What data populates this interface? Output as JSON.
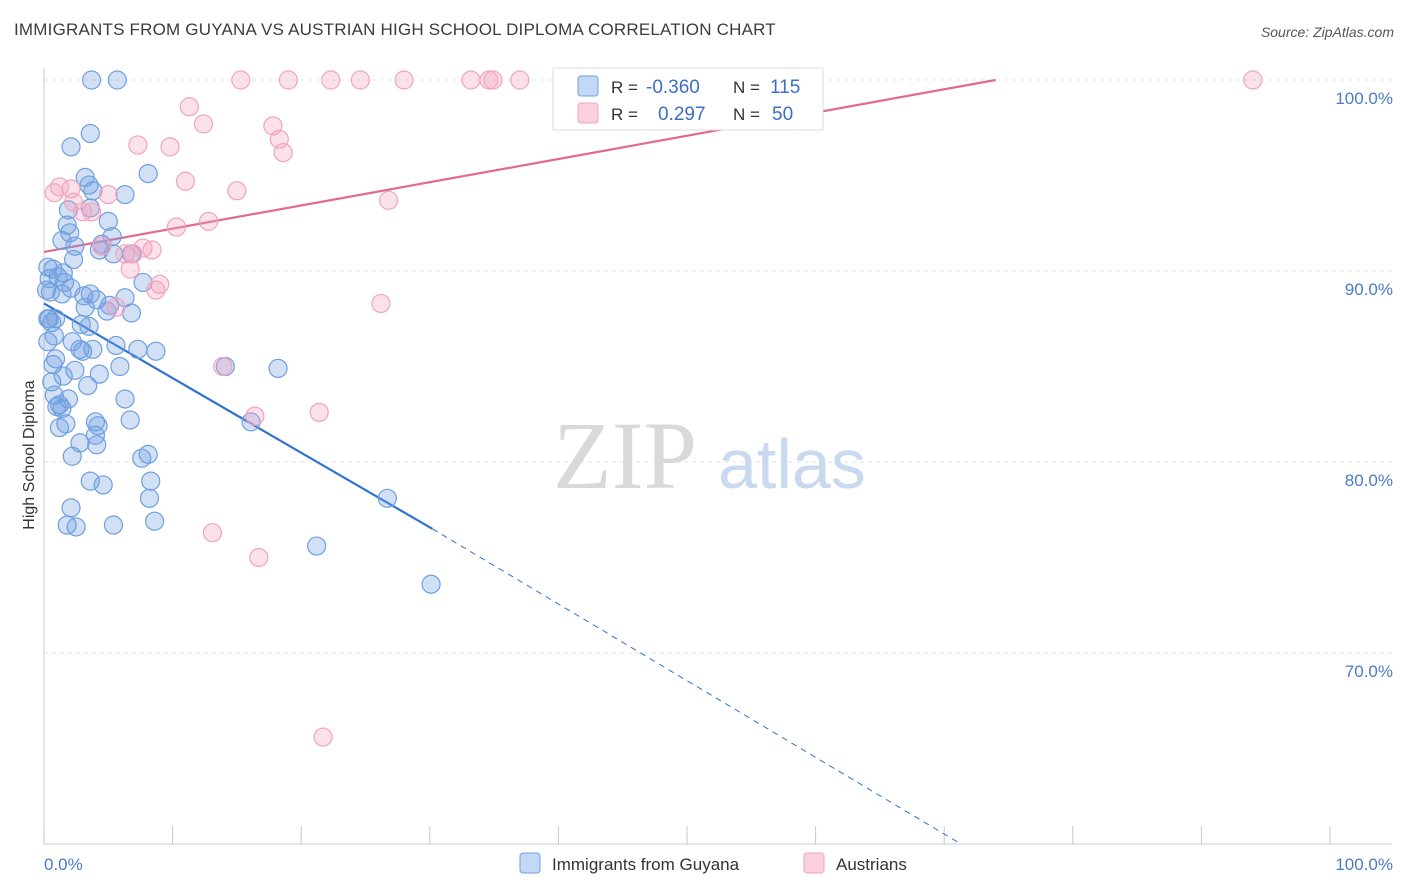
{
  "header": {
    "title": "IMMIGRANTS FROM GUYANA VS AUSTRIAN HIGH SCHOOL DIPLOMA CORRELATION CHART",
    "source": "Source: ZipAtlas.com"
  },
  "watermark": {
    "zip": "ZIP",
    "atlas": "atlas"
  },
  "legend_box": {
    "rows": [
      {
        "r_label": "R =",
        "r_value": "-0.360",
        "n_label": "N =",
        "n_value": "115"
      },
      {
        "r_label": "R =",
        "r_value": "0.297",
        "n_label": "N =",
        "n_value": "50"
      }
    ]
  },
  "colors": {
    "guyana": "#6f9fe0",
    "guyana_line": "#2f72d1",
    "austrians": "#f2a3bd",
    "austrians_line": "#e26a92",
    "axis_label": "#4a7cc7",
    "grid": "#e3e3e3"
  },
  "chart_data": {
    "type": "scatter",
    "title": "IMMIGRANTS FROM GUYANA VS AUSTRIAN HIGH SCHOOL DIPLOMA CORRELATION CHART",
    "xlabel": "",
    "ylabel": "High School Diploma",
    "xlim": [
      0,
      100
    ],
    "ylim": [
      60,
      100
    ],
    "x_tick_labels": [
      "0.0%",
      "100.0%"
    ],
    "y_ticks": [
      70,
      80,
      90,
      100
    ],
    "y_tick_labels": [
      "70.0%",
      "80.0%",
      "90.0%",
      "100.0%"
    ],
    "grid": true,
    "legend_position": "bottom-center",
    "series": [
      {
        "name": "Immigrants from Guyana",
        "color": "#6f9fe0",
        "trend": {
          "x": [
            0,
            30.2
          ],
          "y": [
            88.3,
            76.5
          ],
          "dashed_to": [
            71.3,
            60.0
          ]
        },
        "points": [
          [
            3.7,
            100
          ],
          [
            5.7,
            100
          ],
          [
            3.6,
            97.2
          ],
          [
            2.1,
            96.5
          ],
          [
            8.1,
            95.1
          ],
          [
            3.2,
            94.9
          ],
          [
            3.5,
            94.5
          ],
          [
            3.8,
            94.2
          ],
          [
            6.3,
            94.0
          ],
          [
            1.9,
            93.2
          ],
          [
            3.6,
            93.3
          ],
          [
            5.0,
            92.6
          ],
          [
            1.8,
            92.4
          ],
          [
            2.0,
            92.0
          ],
          [
            1.4,
            91.6
          ],
          [
            5.3,
            91.8
          ],
          [
            2.4,
            91.3
          ],
          [
            4.5,
            91.4
          ],
          [
            4.3,
            91.1
          ],
          [
            6.8,
            90.9
          ],
          [
            5.4,
            90.9
          ],
          [
            0.3,
            90.2
          ],
          [
            1.5,
            89.9
          ],
          [
            2.3,
            90.6
          ],
          [
            0.7,
            90.1
          ],
          [
            1.1,
            89.7
          ],
          [
            0.4,
            89.6
          ],
          [
            1.6,
            89.4
          ],
          [
            0.2,
            89.0
          ],
          [
            0.5,
            88.9
          ],
          [
            2.1,
            89.1
          ],
          [
            1.4,
            88.8
          ],
          [
            7.7,
            89.4
          ],
          [
            3.6,
            88.8
          ],
          [
            3.1,
            88.7
          ],
          [
            6.3,
            88.6
          ],
          [
            4.1,
            88.5
          ],
          [
            5.1,
            88.2
          ],
          [
            3.2,
            88.1
          ],
          [
            0.3,
            87.5
          ],
          [
            0.9,
            87.5
          ],
          [
            6.8,
            87.8
          ],
          [
            0.6,
            87.3
          ],
          [
            0.4,
            87.5
          ],
          [
            2.9,
            87.2
          ],
          [
            4.9,
            87.9
          ],
          [
            0.8,
            86.6
          ],
          [
            3.5,
            87.1
          ],
          [
            0.3,
            86.3
          ],
          [
            2.2,
            86.3
          ],
          [
            5.6,
            86.1
          ],
          [
            2.8,
            85.9
          ],
          [
            3.8,
            85.9
          ],
          [
            3.0,
            85.8
          ],
          [
            7.3,
            85.9
          ],
          [
            8.7,
            85.8
          ],
          [
            0.9,
            85.4
          ],
          [
            0.7,
            85.1
          ],
          [
            5.9,
            85.0
          ],
          [
            2.4,
            84.8
          ],
          [
            1.5,
            84.5
          ],
          [
            4.3,
            84.6
          ],
          [
            0.6,
            84.2
          ],
          [
            3.4,
            84.0
          ],
          [
            14.1,
            85.0
          ],
          [
            18.2,
            84.9
          ],
          [
            0.8,
            83.5
          ],
          [
            6.3,
            83.3
          ],
          [
            1.9,
            83.3
          ],
          [
            1.2,
            83.0
          ],
          [
            1.4,
            82.8
          ],
          [
            1.0,
            82.9
          ],
          [
            4.0,
            82.1
          ],
          [
            1.7,
            82.0
          ],
          [
            6.7,
            82.2
          ],
          [
            16.1,
            82.1
          ],
          [
            4.2,
            81.9
          ],
          [
            1.2,
            81.8
          ],
          [
            4.0,
            81.4
          ],
          [
            2.8,
            81.0
          ],
          [
            4.1,
            80.9
          ],
          [
            8.1,
            80.4
          ],
          [
            2.2,
            80.3
          ],
          [
            7.6,
            80.2
          ],
          [
            3.6,
            79.0
          ],
          [
            4.6,
            78.8
          ],
          [
            8.3,
            79.0
          ],
          [
            8.2,
            78.1
          ],
          [
            26.7,
            78.1
          ],
          [
            2.1,
            77.6
          ],
          [
            8.6,
            76.9
          ],
          [
            1.8,
            76.7
          ],
          [
            2.5,
            76.6
          ],
          [
            5.4,
            76.7
          ],
          [
            21.2,
            75.6
          ],
          [
            30.1,
            73.6
          ]
        ]
      },
      {
        "name": "Austrians",
        "color": "#f2a3bd",
        "trend": {
          "x": [
            0,
            74.0
          ],
          "y": [
            91.0,
            100.0
          ]
        },
        "points": [
          [
            15.3,
            100
          ],
          [
            19.0,
            100
          ],
          [
            22.3,
            100
          ],
          [
            24.6,
            100
          ],
          [
            28.0,
            100
          ],
          [
            33.2,
            100
          ],
          [
            34.6,
            100
          ],
          [
            34.9,
            100
          ],
          [
            37.0,
            100
          ],
          [
            44.7,
            100
          ],
          [
            94.0,
            100
          ],
          [
            53.6,
            99.9
          ],
          [
            11.3,
            98.6
          ],
          [
            12.4,
            97.7
          ],
          [
            17.8,
            97.6
          ],
          [
            18.3,
            96.9
          ],
          [
            7.3,
            96.6
          ],
          [
            9.8,
            96.5
          ],
          [
            18.6,
            96.2
          ],
          [
            1.2,
            94.4
          ],
          [
            11.0,
            94.7
          ],
          [
            2.1,
            94.3
          ],
          [
            0.8,
            94.1
          ],
          [
            5.0,
            94.0
          ],
          [
            15.0,
            94.2
          ],
          [
            26.8,
            93.7
          ],
          [
            2.3,
            93.6
          ],
          [
            3.0,
            93.1
          ],
          [
            3.7,
            93.1
          ],
          [
            12.8,
            92.6
          ],
          [
            10.3,
            92.3
          ],
          [
            4.5,
            91.3
          ],
          [
            7.7,
            91.2
          ],
          [
            8.4,
            91.1
          ],
          [
            6.9,
            90.9
          ],
          [
            6.3,
            90.9
          ],
          [
            6.7,
            90.1
          ],
          [
            9.0,
            89.3
          ],
          [
            8.7,
            89.0
          ],
          [
            5.6,
            88.1
          ],
          [
            26.2,
            88.3
          ],
          [
            13.9,
            85.0
          ],
          [
            16.4,
            82.4
          ],
          [
            21.4,
            82.6
          ],
          [
            13.1,
            76.3
          ],
          [
            16.7,
            75.0
          ],
          [
            21.7,
            65.6
          ],
          [
            49.4,
            100
          ],
          [
            52.5,
            99.9
          ]
        ]
      }
    ]
  },
  "legend": [
    {
      "label": "Immigrants from Guyana",
      "color": "#6f9fe0"
    },
    {
      "label": "Austrians",
      "color": "#f2a3bd"
    }
  ]
}
